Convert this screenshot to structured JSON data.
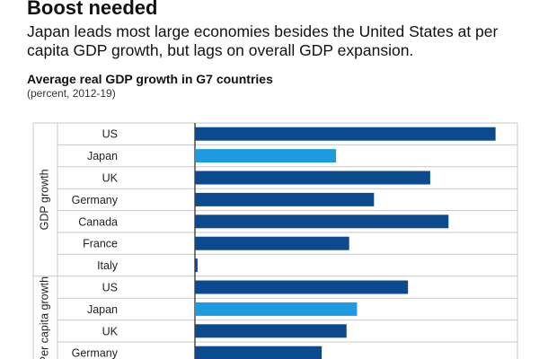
{
  "headline": "Boost needed",
  "subhead": "Japan leads most large economies besides the United States at per capita GDP growth, but lags on overall GDP expansion.",
  "chart_data": {
    "type": "bar",
    "orientation": "horizontal",
    "title": "Average real GDP growth in G7 countries",
    "subtitle": "(percent, 2012-19)",
    "xlim": [
      -0.8,
      2.5
    ],
    "grid": true,
    "colors": {
      "default": "#0b4a8f",
      "highlight": "#1e9be0"
    },
    "groups": [
      {
        "name": "GDP growth",
        "categories": [
          "US",
          "Japan",
          "UK",
          "Germany",
          "Canada",
          "France",
          "Italy"
        ],
        "values": [
          2.3,
          1.08,
          1.8,
          1.37,
          1.94,
          1.18,
          0.02
        ],
        "highlight": [
          false,
          true,
          false,
          false,
          false,
          false,
          false
        ]
      },
      {
        "name": "Per capita growth",
        "categories": [
          "US",
          "Japan",
          "UK",
          "Germany"
        ],
        "values": [
          1.63,
          1.24,
          1.16,
          0.97
        ],
        "highlight": [
          false,
          true,
          false,
          false
        ]
      }
    ]
  }
}
